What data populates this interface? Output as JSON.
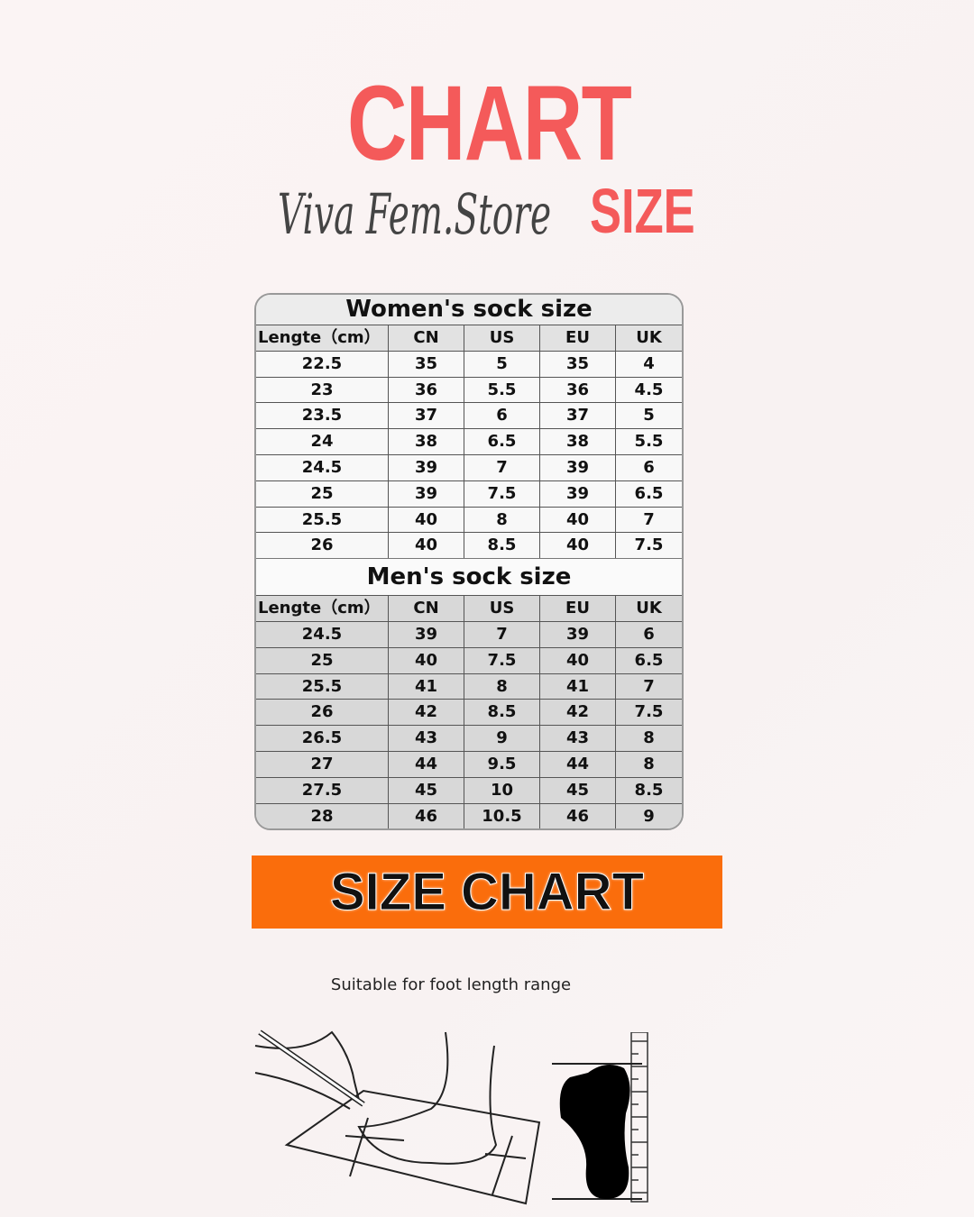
{
  "header": {
    "title_main": "CHART",
    "title_size": "SIZE",
    "store_name": "Viva Fem.Store",
    "accent_color": "#f45a5a"
  },
  "columns": [
    "Lengte（cm）",
    "CN",
    "US",
    "EU",
    "UK"
  ],
  "women": {
    "title": "Women's sock size",
    "rows": [
      [
        "22.5",
        "35",
        "5",
        "35",
        "4"
      ],
      [
        "23",
        "36",
        "5.5",
        "36",
        "4.5"
      ],
      [
        "23.5",
        "37",
        "6",
        "37",
        "5"
      ],
      [
        "24",
        "38",
        "6.5",
        "38",
        "5.5"
      ],
      [
        "24.5",
        "39",
        "7",
        "39",
        "6"
      ],
      [
        "25",
        "39",
        "7.5",
        "39",
        "6.5"
      ],
      [
        "25.5",
        "40",
        "8",
        "40",
        "7"
      ],
      [
        "26",
        "40",
        "8.5",
        "40",
        "7.5"
      ]
    ]
  },
  "men": {
    "title": "Men's sock size",
    "rows": [
      [
        "24.5",
        "39",
        "7",
        "39",
        "6"
      ],
      [
        "25",
        "40",
        "7.5",
        "40",
        "6.5"
      ],
      [
        "25.5",
        "41",
        "8",
        "41",
        "7"
      ],
      [
        "26",
        "42",
        "8.5",
        "42",
        "7.5"
      ],
      [
        "26.5",
        "43",
        "9",
        "43",
        "8"
      ],
      [
        "27",
        "44",
        "9.5",
        "44",
        "8"
      ],
      [
        "27.5",
        "45",
        "10",
        "45",
        "8.5"
      ],
      [
        "28",
        "46",
        "10.5",
        "46",
        "9"
      ]
    ]
  },
  "banner": {
    "label": "SIZE CHART",
    "color": "#fa6d0c"
  },
  "caption": "Suitable for foot length range"
}
